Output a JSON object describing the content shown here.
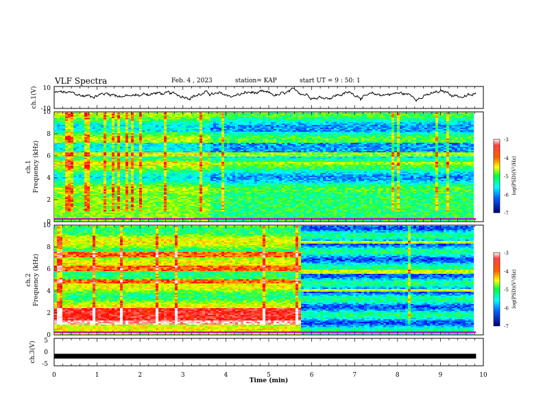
{
  "header": {
    "title": "VLF Spectra",
    "date": "Feb. 4 , 2023",
    "station": "station= KAP",
    "start": "start UT = 9 : 50: 1"
  },
  "chart_data": [
    {
      "type": "line",
      "panel": "ch1-waveform",
      "ylabel": "ch.1(V)",
      "ylim": [
        -10,
        10
      ],
      "yticks": [
        "10",
        "-10"
      ],
      "xlim": [
        0,
        10
      ],
      "approx_envelope_V": [
        -2,
        6
      ]
    },
    {
      "type": "heatmap",
      "panel": "ch1-spectrogram",
      "ylabel": "ch.1\nFrequency (kHz)",
      "ylabel_line1": "ch.1",
      "ylabel_line2": "Frequency (kHz)",
      "yticks": [
        "0",
        "2",
        "4",
        "6",
        "8",
        "10"
      ],
      "ylim": [
        0,
        10
      ],
      "xlim": [
        0,
        9.83
      ],
      "colorbar": {
        "label": "log(PSD)(V²/Hz)",
        "range": [
          -7,
          -3
        ],
        "ticks": [
          "-3",
          "-4",
          "-5",
          "-6",
          "-7"
        ]
      },
      "note": "levels drop after ~3.6 min in upper band"
    },
    {
      "type": "heatmap",
      "panel": "ch2-spectrogram",
      "ylabel_line1": "ch.2",
      "ylabel_line2": "Frequency (kHz)",
      "yticks": [
        "0",
        "2",
        "4",
        "6",
        "8",
        "10"
      ],
      "ylim": [
        0,
        10
      ],
      "xlim": [
        0,
        9.83
      ],
      "change_time_min": 5.7,
      "colorbar": {
        "label": "log(PSD)(V²/Hz)",
        "range": [
          -7,
          -3
        ],
        "ticks": [
          "-3",
          "-4",
          "-5",
          "-6",
          "-7"
        ]
      }
    },
    {
      "type": "line",
      "panel": "ch3-waveform",
      "ylabel": "ch.3(V)",
      "ylim": [
        -5,
        5
      ],
      "yticks": [
        "5",
        "0",
        "-5"
      ],
      "xlim": [
        0,
        10
      ],
      "value_V": -1.5
    }
  ],
  "xaxis": {
    "label": "Time (min)",
    "ticks": [
      "0",
      "1",
      "2",
      "3",
      "4",
      "5",
      "6",
      "7",
      "8",
      "9",
      "10"
    ]
  },
  "colors": {
    "colormap": [
      "#00007f",
      "#0000ff",
      "#0080ff",
      "#00ffff",
      "#00ff80",
      "#80ff00",
      "#ffff00",
      "#ff8000",
      "#ff0000",
      "#ff8080",
      "#ffffff"
    ]
  }
}
